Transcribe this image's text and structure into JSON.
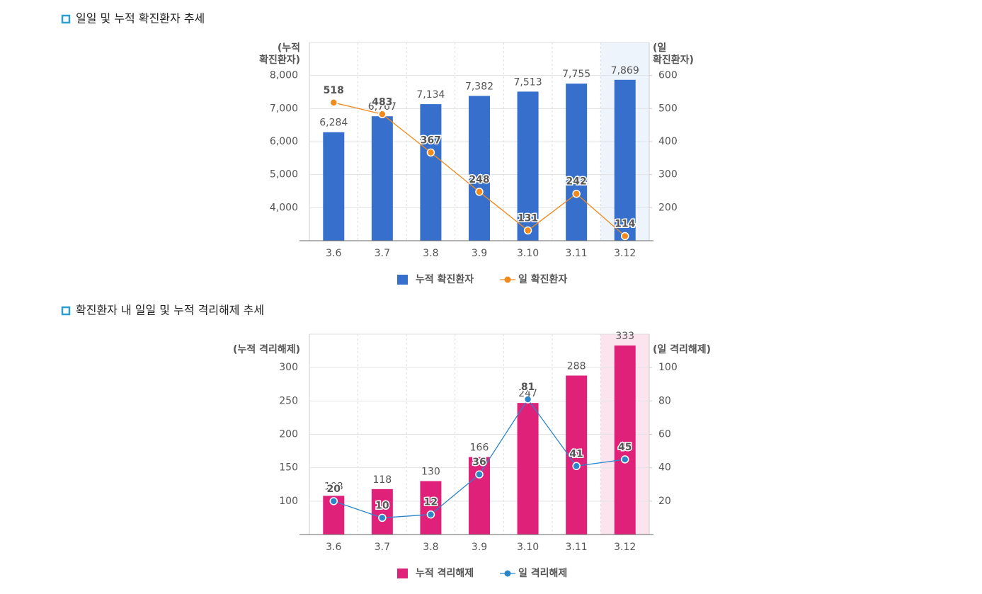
{
  "chart_data": [
    {
      "type": "combo",
      "title": "일일 및 누적 확진환자 추세",
      "categories": [
        "3.6",
        "3.7",
        "3.8",
        "3.9",
        "3.10",
        "3.11",
        "3.12"
      ],
      "ylabel": [
        "(누적",
        "확진환자)"
      ],
      "ylabel_color": "#2b4f9e",
      "y2label": [
        "(일",
        "확진환자)"
      ],
      "y2label_color": "#d9440f",
      "ylim": [
        3000,
        9000
      ],
      "yticks": [
        {
          "value": 4000,
          "label": "4,000"
        },
        {
          "value": 5000,
          "label": "5,000"
        },
        {
          "value": 6000,
          "label": "6,000"
        },
        {
          "value": 7000,
          "label": "7,000"
        },
        {
          "value": 8000,
          "label": "8,000"
        }
      ],
      "y2lim": [
        100,
        700
      ],
      "y2ticks": [
        200,
        300,
        400,
        500,
        600
      ],
      "grid": true,
      "highlight_color": "#eef4fc",
      "series": [
        {
          "name": "누적 확진환자",
          "type": "bar",
          "color": "#3670cc",
          "label_color": "#3a6cc0",
          "values": [
            6284,
            6767,
            7134,
            7382,
            7513,
            7755,
            7869
          ],
          "value_labels": [
            "6,284",
            "6,767",
            "7,134",
            "7,382",
            "7,513",
            "7,755",
            "7,869"
          ]
        },
        {
          "name": "일 확진환자",
          "type": "line",
          "axis": "y2",
          "color": "#f08a1c",
          "label_color": "#e04a16",
          "values": [
            518,
            483,
            367,
            248,
            131,
            242,
            114
          ]
        }
      ]
    },
    {
      "type": "combo",
      "title": "확진환자 내 일일 및 누적 격리해제 추세",
      "categories": [
        "3.6",
        "3.7",
        "3.8",
        "3.9",
        "3.10",
        "3.11",
        "3.12"
      ],
      "ylabel": [
        "(누적 격리해제)"
      ],
      "ylabel_color": "#d81f78",
      "y2label": [
        "(일 격리해제)"
      ],
      "y2label_color": "#2b86c9",
      "ylim": [
        50,
        350
      ],
      "yticks": [
        100,
        150,
        200,
        250,
        300
      ],
      "y2lim": [
        0,
        120
      ],
      "y2ticks": [
        20,
        40,
        60,
        80,
        100
      ],
      "grid": true,
      "highlight_color": "#fce4ef",
      "series": [
        {
          "name": "누적 격리해제",
          "type": "bar",
          "color": "#e0217a",
          "label_color": "#d81f78",
          "values": [
            108,
            118,
            130,
            166,
            247,
            288,
            333
          ]
        },
        {
          "name": "일 격리해제",
          "type": "line",
          "axis": "y2",
          "color": "#2b86c9",
          "label_color": "#2b86c9",
          "values": [
            20,
            10,
            12,
            36,
            81,
            41,
            45
          ]
        }
      ]
    }
  ]
}
